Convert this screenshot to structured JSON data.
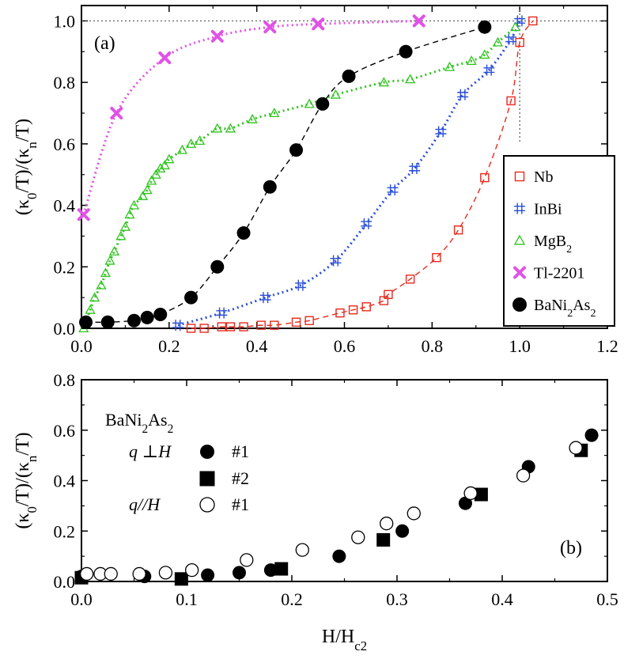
{
  "chart_data": [
    {
      "panel": "(a)",
      "type": "scatter",
      "xlabel": "",
      "ylabel": "(κ0/T)/(κn/T)",
      "ylabel_parts": [
        "(κ",
        "0",
        "/T)/(κ",
        "n",
        "/T)"
      ],
      "xlim": [
        0,
        1.2
      ],
      "ylim": [
        0,
        1.05
      ],
      "xticks": [
        "0.0",
        "0.2",
        "0.4",
        "0.6",
        "0.8",
        "1.0",
        "1.2"
      ],
      "yticks": [
        "0.0",
        "0.2",
        "0.4",
        "0.6",
        "0.8",
        "1.0"
      ],
      "legend_position": "right-lower",
      "series": [
        {
          "name": "Nb",
          "label_parts": [
            "Nb"
          ],
          "marker": "open-square",
          "color": "#e8291c",
          "line": "dashed",
          "x": [
            0.25,
            0.28,
            0.32,
            0.34,
            0.37,
            0.41,
            0.44,
            0.49,
            0.52,
            0.59,
            0.62,
            0.65,
            0.69,
            0.7,
            0.75,
            0.81,
            0.86,
            0.92,
            0.98,
            1.0,
            1.03
          ],
          "y": [
            0.0,
            0.0,
            0.005,
            0.005,
            0.005,
            0.01,
            0.01,
            0.02,
            0.025,
            0.05,
            0.06,
            0.07,
            0.09,
            0.11,
            0.16,
            0.23,
            0.32,
            0.49,
            0.74,
            0.93,
            1.0
          ]
        },
        {
          "name": "InBi",
          "label_parts": [
            "InBi"
          ],
          "marker": "hash",
          "color": "#2a4fd8",
          "line": "dotted",
          "x": [
            0.22,
            0.32,
            0.42,
            0.5,
            0.58,
            0.65,
            0.71,
            0.76,
            0.82,
            0.87,
            0.93,
            0.98,
            1.0
          ],
          "y": [
            0.01,
            0.05,
            0.1,
            0.14,
            0.22,
            0.34,
            0.45,
            0.52,
            0.64,
            0.76,
            0.84,
            0.94,
            1.0
          ]
        },
        {
          "name": "MgB2",
          "label_parts": [
            "MgB",
            "2"
          ],
          "marker": "open-triangle",
          "color": "#2ec41e",
          "line": "dotted",
          "x": [
            0.005,
            0.02,
            0.03,
            0.045,
            0.055,
            0.065,
            0.075,
            0.09,
            0.1,
            0.11,
            0.12,
            0.14,
            0.15,
            0.16,
            0.17,
            0.18,
            0.19,
            0.2,
            0.23,
            0.25,
            0.27,
            0.31,
            0.34,
            0.39,
            0.44,
            0.52,
            0.58,
            0.69,
            0.75,
            0.84,
            0.89,
            0.92,
            0.95,
            0.99
          ],
          "y": [
            0.0,
            0.06,
            0.1,
            0.14,
            0.18,
            0.22,
            0.25,
            0.3,
            0.33,
            0.37,
            0.4,
            0.43,
            0.45,
            0.48,
            0.5,
            0.52,
            0.53,
            0.55,
            0.58,
            0.6,
            0.61,
            0.65,
            0.65,
            0.68,
            0.7,
            0.73,
            0.76,
            0.8,
            0.81,
            0.85,
            0.87,
            0.89,
            0.93,
            0.98
          ]
        },
        {
          "name": "Tl-2201",
          "label_parts": [
            "Tl-2201"
          ],
          "marker": "cross",
          "color": "#e052e6",
          "line": "dotted",
          "x": [
            0.005,
            0.08,
            0.19,
            0.31,
            0.43,
            0.54,
            0.77
          ],
          "y": [
            0.37,
            0.7,
            0.88,
            0.95,
            0.98,
            0.99,
            1.0
          ]
        },
        {
          "name": "BaNi2As2",
          "label_parts": [
            "BaNi",
            "2",
            "As",
            "2"
          ],
          "marker": "filled-circle",
          "color": "#000000",
          "line": "dashed",
          "x": [
            0.01,
            0.06,
            0.12,
            0.15,
            0.18,
            0.25,
            0.31,
            0.37,
            0.43,
            0.49,
            0.55,
            0.61,
            0.74,
            0.92
          ],
          "y": [
            0.02,
            0.02,
            0.025,
            0.035,
            0.045,
            0.1,
            0.2,
            0.31,
            0.46,
            0.58,
            0.73,
            0.82,
            0.9,
            0.98
          ]
        }
      ]
    },
    {
      "panel": "(b)",
      "type": "scatter",
      "xlabel": "H/Hc2",
      "xlabel_parts": [
        "H/H",
        "c2"
      ],
      "ylabel": "(κ0/T)/(κn/T)",
      "ylabel_parts": [
        "(κ",
        "0",
        "/T)/(κ",
        "n",
        "/T)"
      ],
      "xlim": [
        0,
        0.5
      ],
      "ylim": [
        0,
        0.8
      ],
      "xticks": [
        "0.0",
        "0.1",
        "0.2",
        "0.3",
        "0.4",
        "0.5"
      ],
      "yticks": [
        "0.0",
        "0.2",
        "0.4",
        "0.6",
        "0.8"
      ],
      "annotation_title_parts": [
        "BaNi",
        "2",
        "As",
        "2"
      ],
      "legend_rows": [
        {
          "orient": "q ⊥H",
          "sample": "#1",
          "marker": "filled-circle"
        },
        {
          "orient": "",
          "sample": "#2",
          "marker": "filled-square"
        },
        {
          "orient": "q//H",
          "sample": "#1",
          "marker": "open-circle"
        }
      ],
      "series": [
        {
          "name": "q⊥H #1",
          "marker": "filled-circle",
          "x": [
            0.0,
            0.06,
            0.12,
            0.15,
            0.18,
            0.245,
            0.305,
            0.365,
            0.425,
            0.485
          ],
          "y": [
            0.02,
            0.02,
            0.025,
            0.035,
            0.045,
            0.1,
            0.2,
            0.31,
            0.455,
            0.58
          ]
        },
        {
          "name": "q⊥H #2",
          "marker": "filled-square",
          "x": [
            0.0,
            0.095,
            0.19,
            0.287,
            0.38,
            0.475
          ],
          "y": [
            0.015,
            0.01,
            0.05,
            0.165,
            0.345,
            0.52
          ]
        },
        {
          "name": "q//H #1",
          "marker": "open-circle",
          "x": [
            0.005,
            0.018,
            0.028,
            0.055,
            0.08,
            0.105,
            0.157,
            0.21,
            0.263,
            0.29,
            0.316,
            0.37,
            0.42,
            0.47
          ],
          "y": [
            0.03,
            0.03,
            0.03,
            0.03,
            0.035,
            0.045,
            0.085,
            0.125,
            0.175,
            0.23,
            0.27,
            0.35,
            0.42,
            0.53
          ]
        }
      ]
    }
  ]
}
